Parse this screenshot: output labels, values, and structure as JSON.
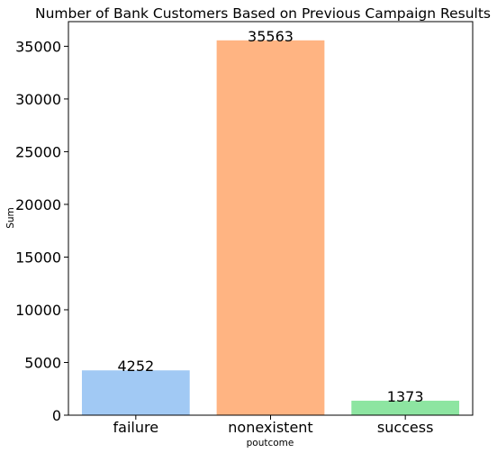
{
  "chart_data": {
    "type": "bar",
    "title": "Number of Bank Customers Based on Previous Campaign Results",
    "xlabel": "poutcome",
    "ylabel": "Sum",
    "categories": [
      "failure",
      "nonexistent",
      "success"
    ],
    "values": [
      4252,
      35563,
      1373
    ],
    "colors": [
      "#a1c9f4",
      "#ffb482",
      "#8de5a1"
    ],
    "ylim": [
      0,
      37340
    ],
    "yticks": [
      0,
      5000,
      10000,
      15000,
      20000,
      25000,
      30000,
      35000
    ],
    "grid": false,
    "legend": "none"
  }
}
